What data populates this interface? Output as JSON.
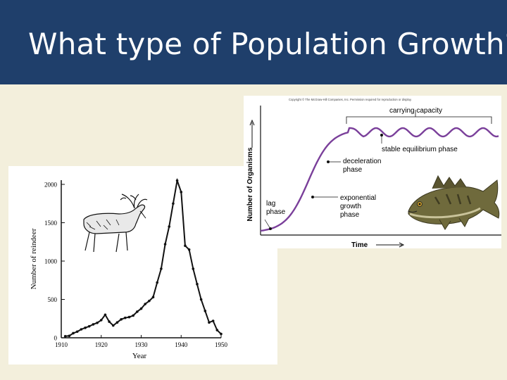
{
  "slide": {
    "title": "What type of Population Growth?"
  },
  "chart_data": [
    {
      "type": "line",
      "title": "",
      "xlabel": "Year",
      "ylabel": "Number of reindeer",
      "xlim": [
        1910,
        1950
      ],
      "ylim": [
        0,
        2000
      ],
      "x_ticks": [
        "1910",
        "1920",
        "1930",
        "1940",
        "1950"
      ],
      "y_ticks": [
        "0",
        "500",
        "1000",
        "1500",
        "2000"
      ],
      "x": [
        1911,
        1912,
        1913,
        1914,
        1915,
        1916,
        1917,
        1918,
        1919,
        1920,
        1921,
        1922,
        1923,
        1924,
        1925,
        1926,
        1927,
        1928,
        1929,
        1930,
        1931,
        1932,
        1933,
        1934,
        1935,
        1936,
        1937,
        1938,
        1939,
        1940,
        1941,
        1942,
        1943,
        1944,
        1945,
        1946,
        1947,
        1948,
        1949,
        1950
      ],
      "values": [
        20,
        25,
        60,
        80,
        110,
        130,
        150,
        175,
        195,
        230,
        300,
        210,
        160,
        200,
        240,
        260,
        270,
        290,
        340,
        380,
        440,
        480,
        530,
        720,
        900,
        1220,
        1450,
        1750,
        2050,
        1900,
        1200,
        1150,
        900,
        700,
        500,
        350,
        200,
        220,
        100,
        50
      ],
      "line_color": "#111111",
      "icon": "reindeer-icon"
    },
    {
      "type": "line",
      "title": "",
      "xlabel": "Time",
      "ylabel": "Number of Organisms",
      "copyright": "Copyright © The McGraw-Hill Companies, Inc. Permission required for reproduction or display.",
      "line_color": "#7a3f9a",
      "phases": [
        "lag phase",
        "exponential growth phase",
        "deceleration phase",
        "stable equilibrium phase"
      ],
      "annotations": {
        "carrying_capacity": "carrying capacity",
        "lag_1": "lag",
        "lag_2": "phase",
        "exp_1": "exponential",
        "exp_2": "growth",
        "exp_3": "phase",
        "decel_1": "deceleration",
        "decel_2": "phase",
        "stable": "stable equilibrium phase"
      },
      "icon": "fish-icon"
    }
  ]
}
